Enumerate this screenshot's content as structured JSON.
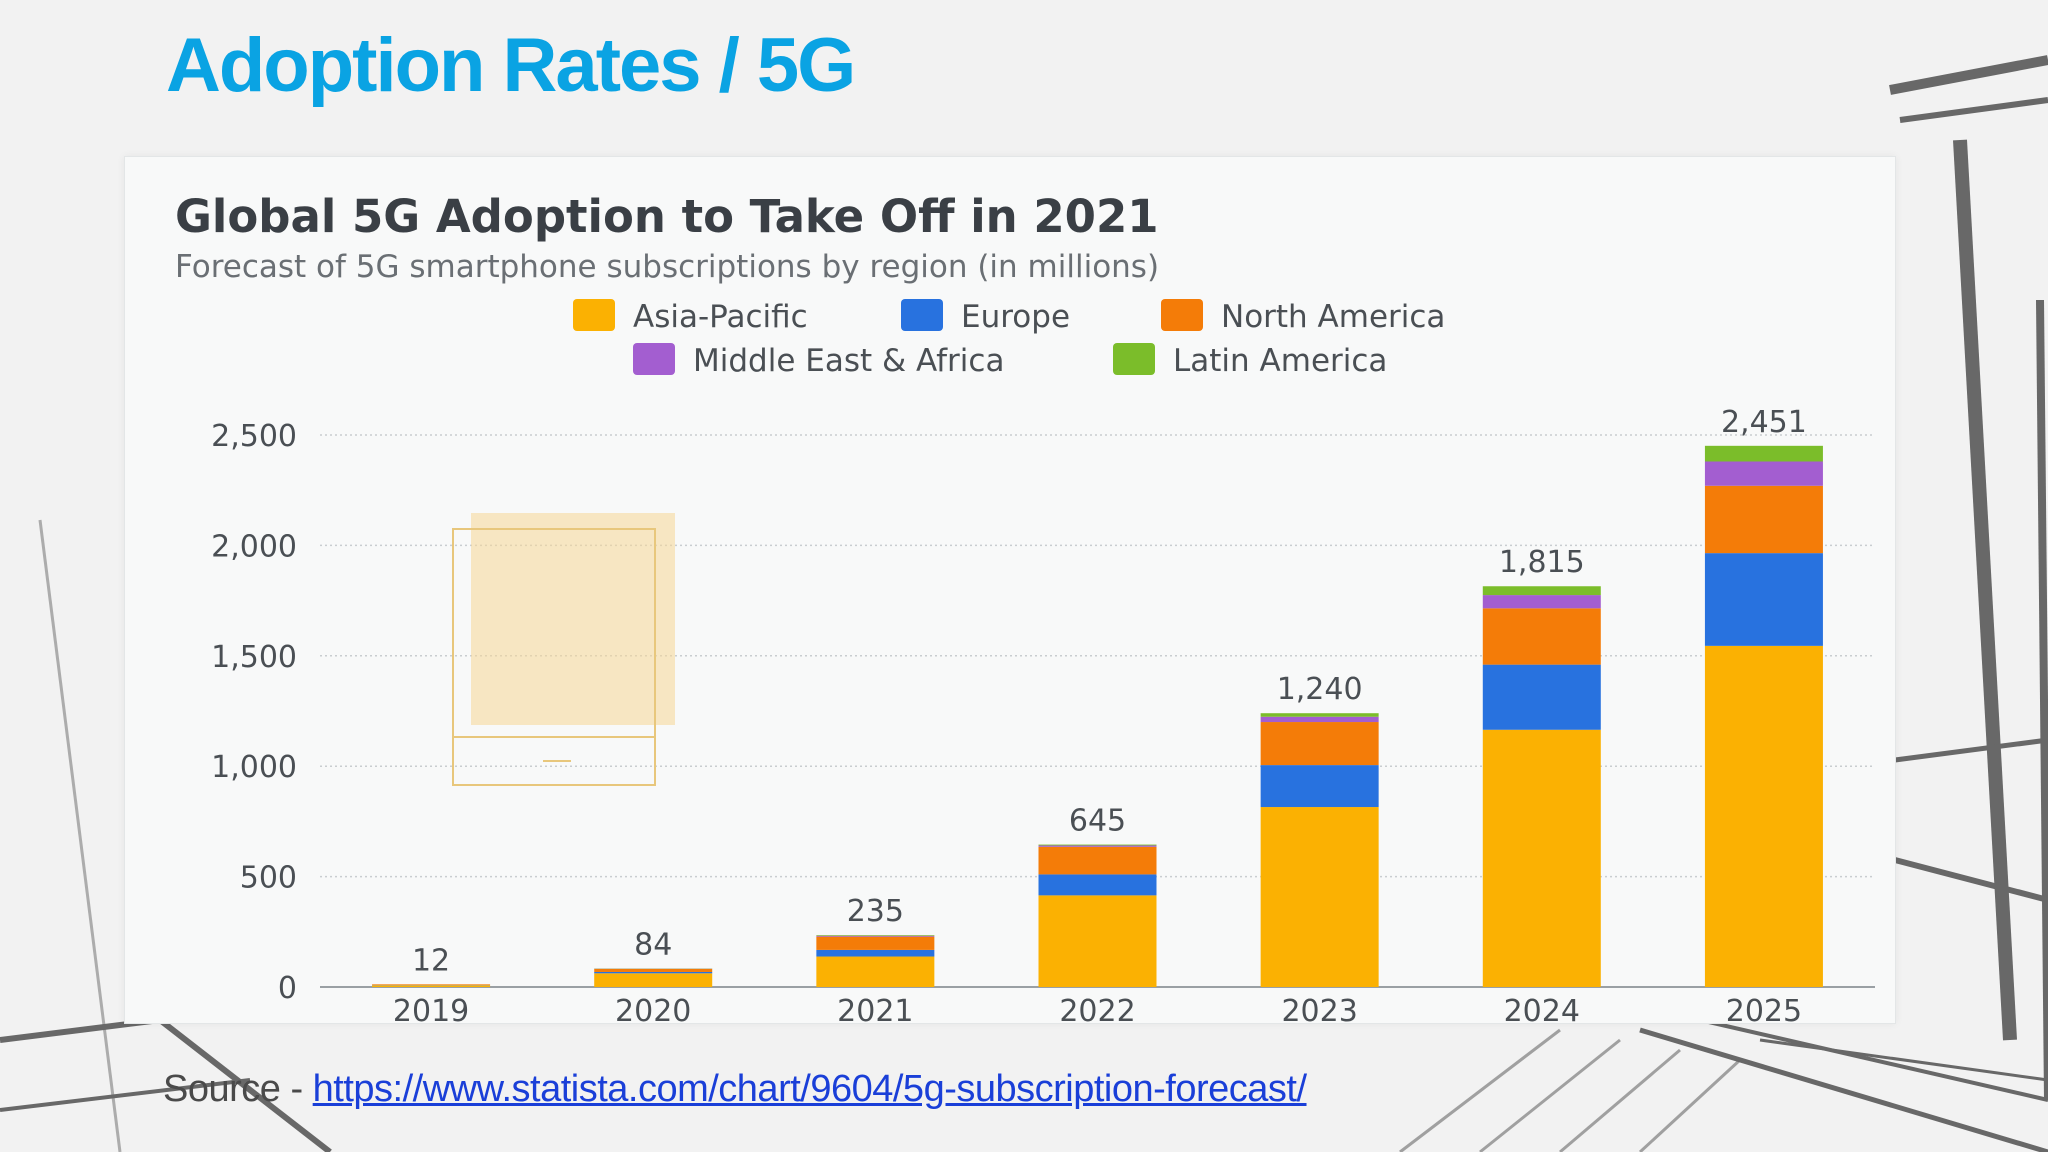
{
  "slide": {
    "title": "Adoption Rates / 5G",
    "source_label": "Source - ",
    "source_url": "https://www.statista.com/chart/9604/5g-subscription-forecast/"
  },
  "chart_data": {
    "type": "bar",
    "stacked": true,
    "title": "Global 5G Adoption to Take Off in 2021",
    "subtitle": "Forecast of 5G smartphone subscriptions by region (in millions)",
    "xlabel": "",
    "ylabel": "",
    "categories": [
      "2019",
      "2020",
      "2021",
      "2022",
      "2023",
      "2024",
      "2025"
    ],
    "ylim": [
      0,
      2500
    ],
    "yticks": [
      0,
      500,
      1000,
      1500,
      2000,
      2500
    ],
    "ytick_labels": [
      "0",
      "500",
      "1,000",
      "1,500",
      "2,000",
      "2,500"
    ],
    "grid": true,
    "legend_position": "top-center",
    "series": [
      {
        "name": "Asia-Pacific",
        "color": "#fbb102",
        "values": [
          8,
          62,
          138,
          415,
          815,
          1165,
          1545
        ]
      },
      {
        "name": "Europe",
        "color": "#2872df",
        "values": [
          1,
          6,
          30,
          95,
          190,
          295,
          420
        ]
      },
      {
        "name": "North America",
        "color": "#f47c08",
        "values": [
          3,
          14,
          60,
          125,
          195,
          255,
          305
        ]
      },
      {
        "name": "Middle East & Africa",
        "color": "#a35ed0",
        "values": [
          0,
          1,
          4,
          6,
          24,
          60,
          110
        ]
      },
      {
        "name": "Latin America",
        "color": "#7bbd2a",
        "values": [
          0,
          1,
          3,
          4,
          16,
          40,
          71
        ]
      }
    ],
    "totals": [
      12,
      84,
      235,
      645,
      1240,
      1815,
      2451
    ],
    "total_labels": [
      "12",
      "84",
      "235",
      "645",
      "1,240",
      "1,815",
      "2,451"
    ]
  }
}
